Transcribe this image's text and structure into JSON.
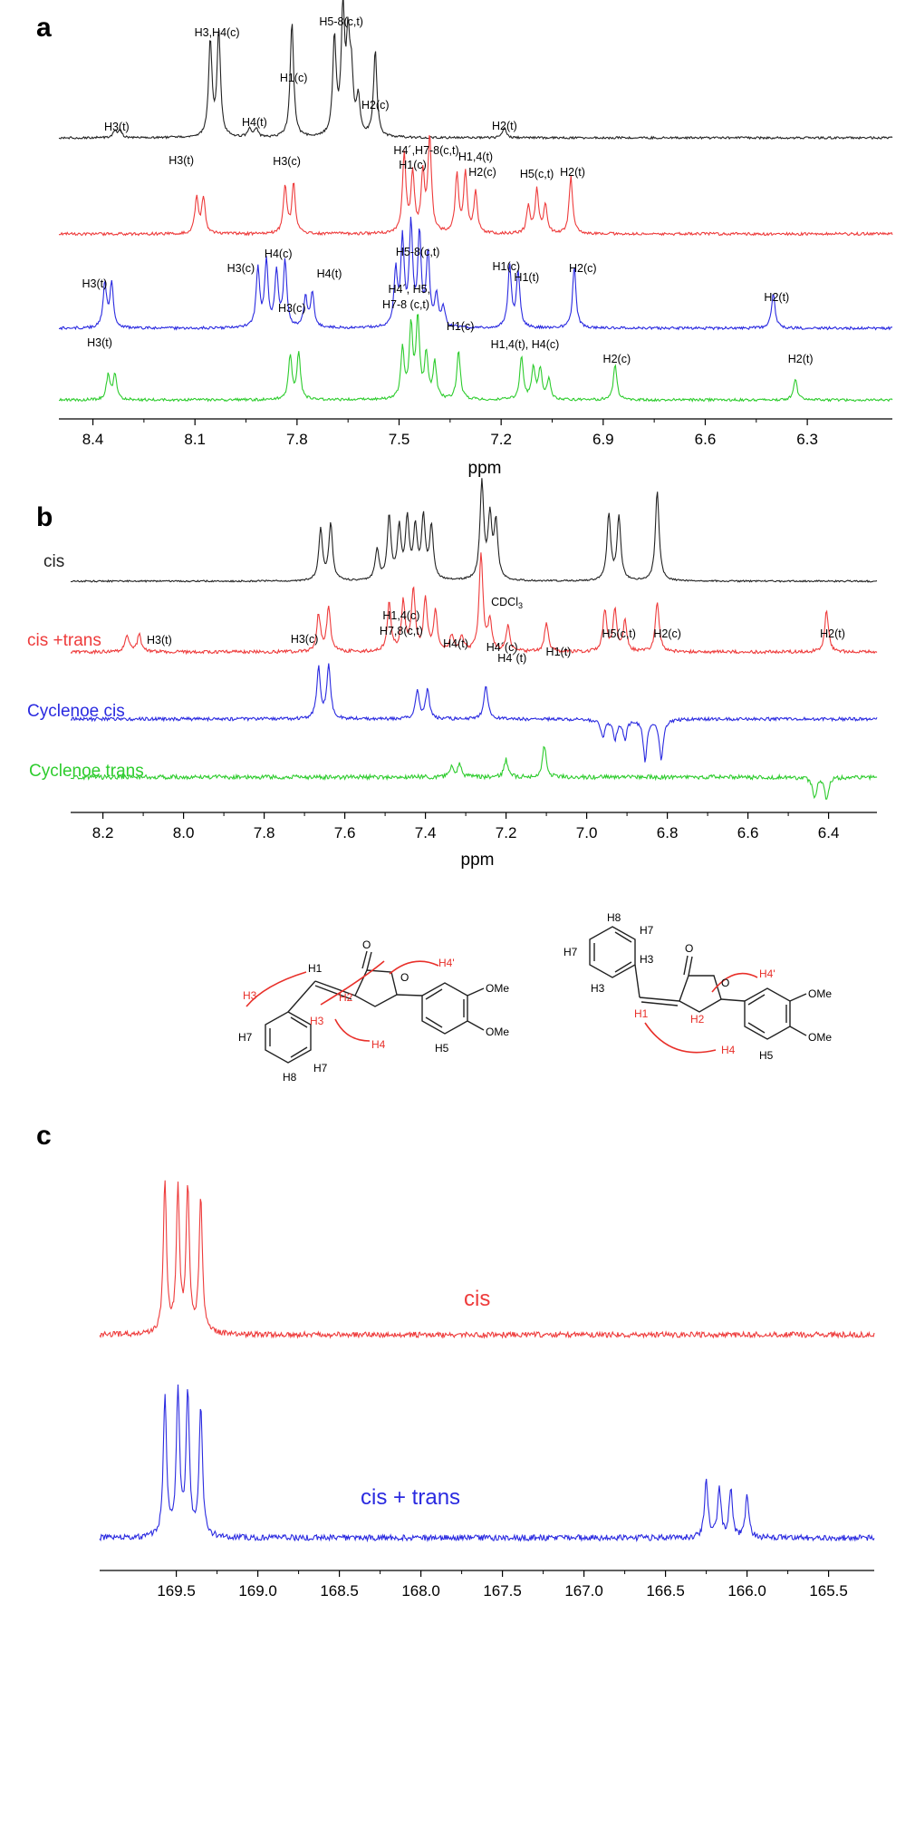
{
  "colors": {
    "black": "#222222",
    "red": "#ee3b3b",
    "blue": "#2a2ae0",
    "green": "#2ecc2e",
    "structure_red": "#e8302a"
  },
  "panel_a": {
    "letter": "a",
    "xlabel": "ppm",
    "xlim": [
      8.5,
      6.05
    ],
    "ticks": [
      "8.4",
      "8.1",
      "7.8",
      "7.5",
      "7.2",
      "6.9",
      "6.6",
      "6.3"
    ],
    "tick_values": [
      8.4,
      8.1,
      7.8,
      7.5,
      7.2,
      6.9,
      6.6,
      6.3
    ]
  },
  "panel_b": {
    "letter": "b",
    "xlabel": "ppm",
    "xlim": [
      8.28,
      6.28
    ],
    "ticks": [
      "8.2",
      "8.0",
      "7.8",
      "7.6",
      "7.4",
      "7.2",
      "7.0",
      "6.8",
      "6.6",
      "6.4"
    ],
    "tick_values": [
      8.2,
      8.0,
      7.8,
      7.6,
      7.4,
      7.2,
      7.0,
      6.8,
      6.6,
      6.4
    ],
    "trace_names": [
      "cis",
      "cis +trans",
      "Cyclenoe cis",
      "Cyclenoe trans"
    ]
  },
  "panel_c": {
    "letter": "c",
    "xlim": [
      169.97,
      165.22
    ],
    "ticks": [
      "169.5",
      "169.0",
      "168.5",
      "168.0",
      "167.5",
      "167.0",
      "166.5",
      "166.0",
      "165.5"
    ],
    "tick_values": [
      169.5,
      169.0,
      168.5,
      168.0,
      167.5,
      167.0,
      166.5,
      166.0,
      165.5
    ],
    "trace_names": [
      "cis",
      "cis + trans"
    ]
  },
  "chart_data": [
    {
      "type": "line",
      "panel": "a",
      "xlabel": "ppm",
      "xlim": [
        8.5,
        6.05
      ],
      "series": [
        {
          "color": "black",
          "peaks": [
            {
              "x": 8.335,
              "h": 0.06
            },
            {
              "x": 8.32,
              "h": 0.06
            },
            {
              "x": 8.055,
              "h": 0.78
            },
            {
              "x": 8.03,
              "h": 0.86
            },
            {
              "x": 7.94,
              "h": 0.07
            },
            {
              "x": 7.92,
              "h": 0.07
            },
            {
              "x": 7.815,
              "h": 0.95
            },
            {
              "x": 7.69,
              "h": 0.8
            },
            {
              "x": 7.665,
              "h": 1.0
            },
            {
              "x": 7.65,
              "h": 0.7
            },
            {
              "x": 7.64,
              "h": 0.45
            },
            {
              "x": 7.62,
              "h": 0.3
            },
            {
              "x": 7.57,
              "h": 0.7
            },
            {
              "x": 7.19,
              "h": 0.08
            }
          ],
          "peak_labels": [
            {
              "text": "H3(t)",
              "x": 8.33
            },
            {
              "text": "H3,H4(c)",
              "x": 8.035
            },
            {
              "text": "H4(t)",
              "x": 7.925
            },
            {
              "text": "H1(c)",
              "x": 7.81
            },
            {
              "text": "H5-8(c,t)",
              "x": 7.67
            },
            {
              "text": "H2(c)",
              "x": 7.57
            },
            {
              "text": "H2(t)",
              "x": 7.19
            }
          ]
        },
        {
          "color": "red",
          "peaks": [
            {
              "x": 8.095,
              "h": 0.38
            },
            {
              "x": 8.075,
              "h": 0.38
            },
            {
              "x": 7.835,
              "h": 0.5
            },
            {
              "x": 7.81,
              "h": 0.52
            },
            {
              "x": 7.485,
              "h": 0.82
            },
            {
              "x": 7.46,
              "h": 0.62
            },
            {
              "x": 7.43,
              "h": 0.6
            },
            {
              "x": 7.41,
              "h": 1.0
            },
            {
              "x": 7.33,
              "h": 0.6
            },
            {
              "x": 7.305,
              "h": 0.62
            },
            {
              "x": 7.275,
              "h": 0.42
            },
            {
              "x": 7.12,
              "h": 0.28
            },
            {
              "x": 7.095,
              "h": 0.45
            },
            {
              "x": 7.07,
              "h": 0.3
            },
            {
              "x": 6.995,
              "h": 0.6
            }
          ],
          "peak_labels": [
            {
              "text": "H3(t)",
              "x": 8.14
            },
            {
              "text": "H3(c)",
              "x": 7.83
            },
            {
              "text": "H4´,H7-8(c,t)",
              "x": 7.42
            },
            {
              "text": "H1(c)",
              "x": 7.46
            },
            {
              "text": "H1,4(t)",
              "x": 7.275
            },
            {
              "text": "H2(c)",
              "x": 7.255
            },
            {
              "text": "H5(c,t)",
              "x": 7.095
            },
            {
              "text": "H2(t)",
              "x": 6.99
            }
          ]
        },
        {
          "color": "blue",
          "peaks": [
            {
              "x": 8.365,
              "h": 0.45
            },
            {
              "x": 8.345,
              "h": 0.45
            },
            {
              "x": 7.915,
              "h": 0.6
            },
            {
              "x": 7.89,
              "h": 0.65
            },
            {
              "x": 7.86,
              "h": 0.55
            },
            {
              "x": 7.835,
              "h": 0.65
            },
            {
              "x": 7.775,
              "h": 0.3
            },
            {
              "x": 7.755,
              "h": 0.35
            },
            {
              "x": 7.51,
              "h": 0.55
            },
            {
              "x": 7.49,
              "h": 0.85
            },
            {
              "x": 7.465,
              "h": 1.0
            },
            {
              "x": 7.44,
              "h": 0.9
            },
            {
              "x": 7.415,
              "h": 0.72
            },
            {
              "x": 7.39,
              "h": 0.3
            },
            {
              "x": 7.37,
              "h": 0.2
            },
            {
              "x": 7.175,
              "h": 0.62
            },
            {
              "x": 7.15,
              "h": 0.56
            },
            {
              "x": 6.985,
              "h": 0.62
            },
            {
              "x": 6.4,
              "h": 0.36
            }
          ],
          "peak_labels": [
            {
              "text": "H3(t)",
              "x": 8.395
            },
            {
              "text": "H3(c)",
              "x": 7.965
            },
            {
              "text": "H4(c)",
              "x": 7.855
            },
            {
              "text": "H4(t)",
              "x": 7.705
            },
            {
              "text": "H5-8(c,t)",
              "x": 7.445
            },
            {
              "text": "H1(c)",
              "x": 7.185
            },
            {
              "text": "H1(t)",
              "x": 7.125
            },
            {
              "text": "H2(c)",
              "x": 6.96
            },
            {
              "text": "H2(t)",
              "x": 6.39
            }
          ]
        },
        {
          "color": "green",
          "peaks": [
            {
              "x": 8.355,
              "h": 0.32
            },
            {
              "x": 8.335,
              "h": 0.32
            },
            {
              "x": 7.82,
              "h": 0.55
            },
            {
              "x": 7.795,
              "h": 0.58
            },
            {
              "x": 7.49,
              "h": 0.62
            },
            {
              "x": 7.465,
              "h": 0.9
            },
            {
              "x": 7.445,
              "h": 1.0
            },
            {
              "x": 7.42,
              "h": 0.55
            },
            {
              "x": 7.395,
              "h": 0.45
            },
            {
              "x": 7.325,
              "h": 0.62
            },
            {
              "x": 7.14,
              "h": 0.55
            },
            {
              "x": 7.105,
              "h": 0.4
            },
            {
              "x": 7.085,
              "h": 0.38
            },
            {
              "x": 7.06,
              "h": 0.25
            },
            {
              "x": 6.865,
              "h": 0.45
            },
            {
              "x": 6.335,
              "h": 0.26
            }
          ],
          "peak_labels": [
            {
              "text": "H3(t)",
              "x": 8.38
            },
            {
              "text": "H3(c)",
              "x": 7.815
            },
            {
              "text": "H4´, H5,",
              "x": 7.47
            },
            {
              "text": "H7-8 (c,t)",
              "x": 7.48
            },
            {
              "text": "H1(c)",
              "x": 7.32
            },
            {
              "text": "H1,4(t), H4(c)",
              "x": 7.13
            },
            {
              "text": "H2(c)",
              "x": 6.86
            },
            {
              "text": "H2(t)",
              "x": 6.32
            }
          ]
        }
      ]
    },
    {
      "type": "line",
      "panel": "b",
      "xlabel": "ppm",
      "xlim": [
        8.28,
        6.28
      ],
      "series": [
        {
          "name": "cis",
          "color": "black",
          "peaks": [
            {
              "x": 7.66,
              "h": 0.5
            },
            {
              "x": 7.635,
              "h": 0.55
            },
            {
              "x": 7.52,
              "h": 0.3
            },
            {
              "x": 7.49,
              "h": 0.62
            },
            {
              "x": 7.465,
              "h": 0.5
            },
            {
              "x": 7.445,
              "h": 0.58
            },
            {
              "x": 7.425,
              "h": 0.5
            },
            {
              "x": 7.405,
              "h": 0.6
            },
            {
              "x": 7.385,
              "h": 0.52
            },
            {
              "x": 7.26,
              "h": 0.95
            },
            {
              "x": 7.24,
              "h": 0.6
            },
            {
              "x": 7.225,
              "h": 0.55
            },
            {
              "x": 6.945,
              "h": 0.65
            },
            {
              "x": 6.92,
              "h": 0.62
            },
            {
              "x": 6.825,
              "h": 0.88
            }
          ]
        },
        {
          "name": "cis +trans",
          "color": "red",
          "peaks": [
            {
              "x": 8.14,
              "h": 0.18
            },
            {
              "x": 8.11,
              "h": 0.18
            },
            {
              "x": 7.665,
              "h": 0.38
            },
            {
              "x": 7.64,
              "h": 0.45
            },
            {
              "x": 7.49,
              "h": 0.5
            },
            {
              "x": 7.455,
              "h": 0.5
            },
            {
              "x": 7.43,
              "h": 0.62
            },
            {
              "x": 7.4,
              "h": 0.52
            },
            {
              "x": 7.375,
              "h": 0.4
            },
            {
              "x": 7.335,
              "h": 0.16
            },
            {
              "x": 7.31,
              "h": 0.16
            },
            {
              "x": 7.262,
              "h": 1.0
            },
            {
              "x": 7.24,
              "h": 0.3
            },
            {
              "x": 7.195,
              "h": 0.26
            },
            {
              "x": 7.1,
              "h": 0.3
            },
            {
              "x": 6.955,
              "h": 0.42
            },
            {
              "x": 6.93,
              "h": 0.42
            },
            {
              "x": 6.905,
              "h": 0.3
            },
            {
              "x": 6.825,
              "h": 0.52
            },
            {
              "x": 6.405,
              "h": 0.42
            }
          ],
          "peak_labels": [
            {
              "text": "H3(t)",
              "x": 8.06
            },
            {
              "text": "H3(c)",
              "x": 7.7
            },
            {
              "text": "H1,4(c)",
              "x": 7.46
            },
            {
              "text": "H7,8(c,t)",
              "x": 7.46
            },
            {
              "text": "CDCl3",
              "x": 7.2
            },
            {
              "text": "H4(t)",
              "x": 7.325
            },
            {
              "text": "H4´(c)",
              "x": 7.21
            },
            {
              "text": "H4´(t)",
              "x": 7.185
            },
            {
              "text": "H1(t)",
              "x": 7.07
            },
            {
              "text": "H5(c,t)",
              "x": 6.92
            },
            {
              "text": "H2(c)",
              "x": 6.8
            },
            {
              "text": "H2(t)",
              "x": 6.39
            }
          ]
        },
        {
          "name": "Cyclenoe cis",
          "color": "blue",
          "peaks": [
            {
              "x": 7.665,
              "h": 0.8
            },
            {
              "x": 7.64,
              "h": 0.85
            },
            {
              "x": 7.42,
              "h": 0.45
            },
            {
              "x": 7.395,
              "h": 0.45
            },
            {
              "x": 7.25,
              "h": 0.55
            },
            {
              "x": 6.96,
              "h": -0.28
            },
            {
              "x": 6.93,
              "h": -0.32
            },
            {
              "x": 6.905,
              "h": -0.3
            },
            {
              "x": 6.855,
              "h": -0.65
            },
            {
              "x": 6.815,
              "h": -0.65
            }
          ]
        },
        {
          "name": "Cyclenoe trans",
          "color": "green",
          "peaks": [
            {
              "x": 7.335,
              "h": 0.22
            },
            {
              "x": 7.315,
              "h": 0.25
            },
            {
              "x": 7.2,
              "h": 0.36
            },
            {
              "x": 7.105,
              "h": 0.65
            },
            {
              "x": 6.435,
              "h": -0.45
            },
            {
              "x": 6.405,
              "h": -0.45
            }
          ]
        }
      ]
    },
    {
      "type": "line",
      "panel": "c",
      "xlim": [
        169.97,
        165.22
      ],
      "series": [
        {
          "name": "cis",
          "color": "red",
          "peaks": [
            {
              "x": 169.57,
              "h": 1.0
            },
            {
              "x": 169.49,
              "h": 0.95
            },
            {
              "x": 169.43,
              "h": 0.97
            },
            {
              "x": 169.35,
              "h": 0.9
            }
          ]
        },
        {
          "name": "cis + trans",
          "color": "blue",
          "peaks": [
            {
              "x": 169.57,
              "h": 0.95
            },
            {
              "x": 169.49,
              "h": 1.0
            },
            {
              "x": 169.43,
              "h": 0.98
            },
            {
              "x": 169.35,
              "h": 0.9
            },
            {
              "x": 166.25,
              "h": 0.4
            },
            {
              "x": 166.17,
              "h": 0.35
            },
            {
              "x": 166.1,
              "h": 0.33
            },
            {
              "x": 166.0,
              "h": 0.3
            }
          ]
        }
      ]
    }
  ],
  "structures": {
    "left": {
      "labels": {
        "h1": "H1",
        "h2": "H2",
        "h3_ortho_top": "H3",
        "h3_ortho_bottom": "H3",
        "h7_left": "H7",
        "h8": "H8",
        "h7_right": "H7",
        "h4_prime": "H4'",
        "h4": "H4",
        "h5": "H5",
        "o_carbonyl": "O",
        "o_ring": "O",
        "ome_top": "OMe",
        "ome_bottom": "OMe"
      }
    },
    "right": {
      "labels": {
        "h8": "H8",
        "h7_top": "H7",
        "h7_left": "H7",
        "h3_right": "H3",
        "h3_bottom": "H3",
        "h1": "H1",
        "h2": "H2",
        "h4_prime": "H4'",
        "h4": "H4",
        "h5": "H5",
        "o_carbonyl": "O",
        "o_ring": "O",
        "ome_top": "OMe",
        "ome_bottom": "OMe"
      }
    }
  }
}
